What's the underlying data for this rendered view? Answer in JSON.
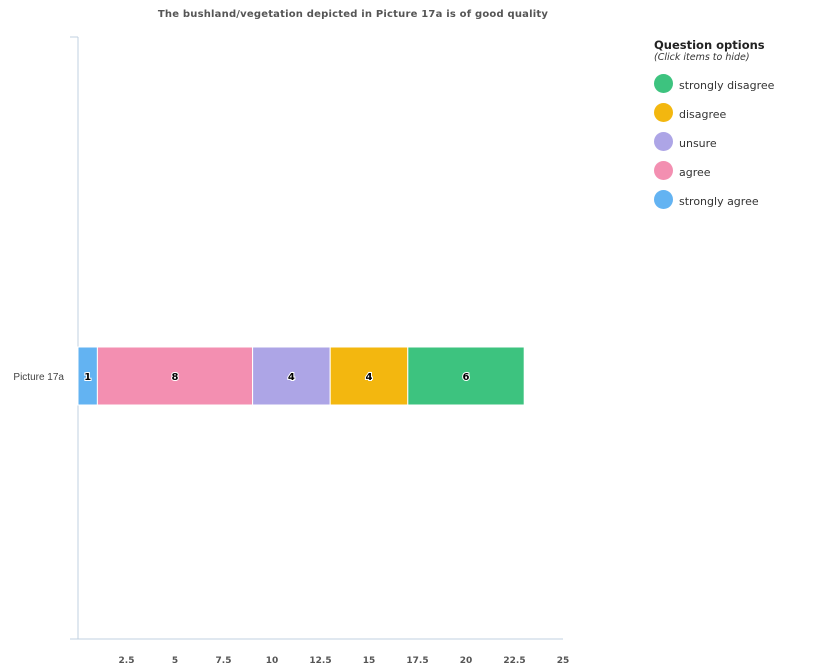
{
  "chart_data": {
    "type": "bar",
    "orientation": "horizontal",
    "stacked": true,
    "title": "The bushland/vegetation depicted in Picture 17a is of good quality",
    "categories": [
      "Picture 17a"
    ],
    "series": [
      {
        "name": "strongly agree",
        "values": [
          1
        ],
        "color": "#63b3f2"
      },
      {
        "name": "agree",
        "values": [
          8
        ],
        "color": "#f38fb1"
      },
      {
        "name": "unsure",
        "values": [
          4
        ],
        "color": "#ada5e6"
      },
      {
        "name": "disagree",
        "values": [
          4
        ],
        "color": "#f3b70f"
      },
      {
        "name": "strongly disagree",
        "values": [
          6
        ],
        "color": "#3dc37f"
      }
    ],
    "xlim": [
      0,
      25
    ],
    "xticks": [
      "2.5",
      "5",
      "7.5",
      "10",
      "12.5",
      "15",
      "17.5",
      "20",
      "22.5",
      "25"
    ],
    "xtick_values": [
      2.5,
      5,
      7.5,
      10,
      12.5,
      15,
      17.5,
      20,
      22.5,
      25
    ],
    "grid": false,
    "legend_position": "right"
  },
  "legend": {
    "heading": "Question options",
    "subheading": "(Click items to hide)",
    "order": [
      "strongly disagree",
      "disagree",
      "unsure",
      "agree",
      "strongly agree"
    ]
  }
}
